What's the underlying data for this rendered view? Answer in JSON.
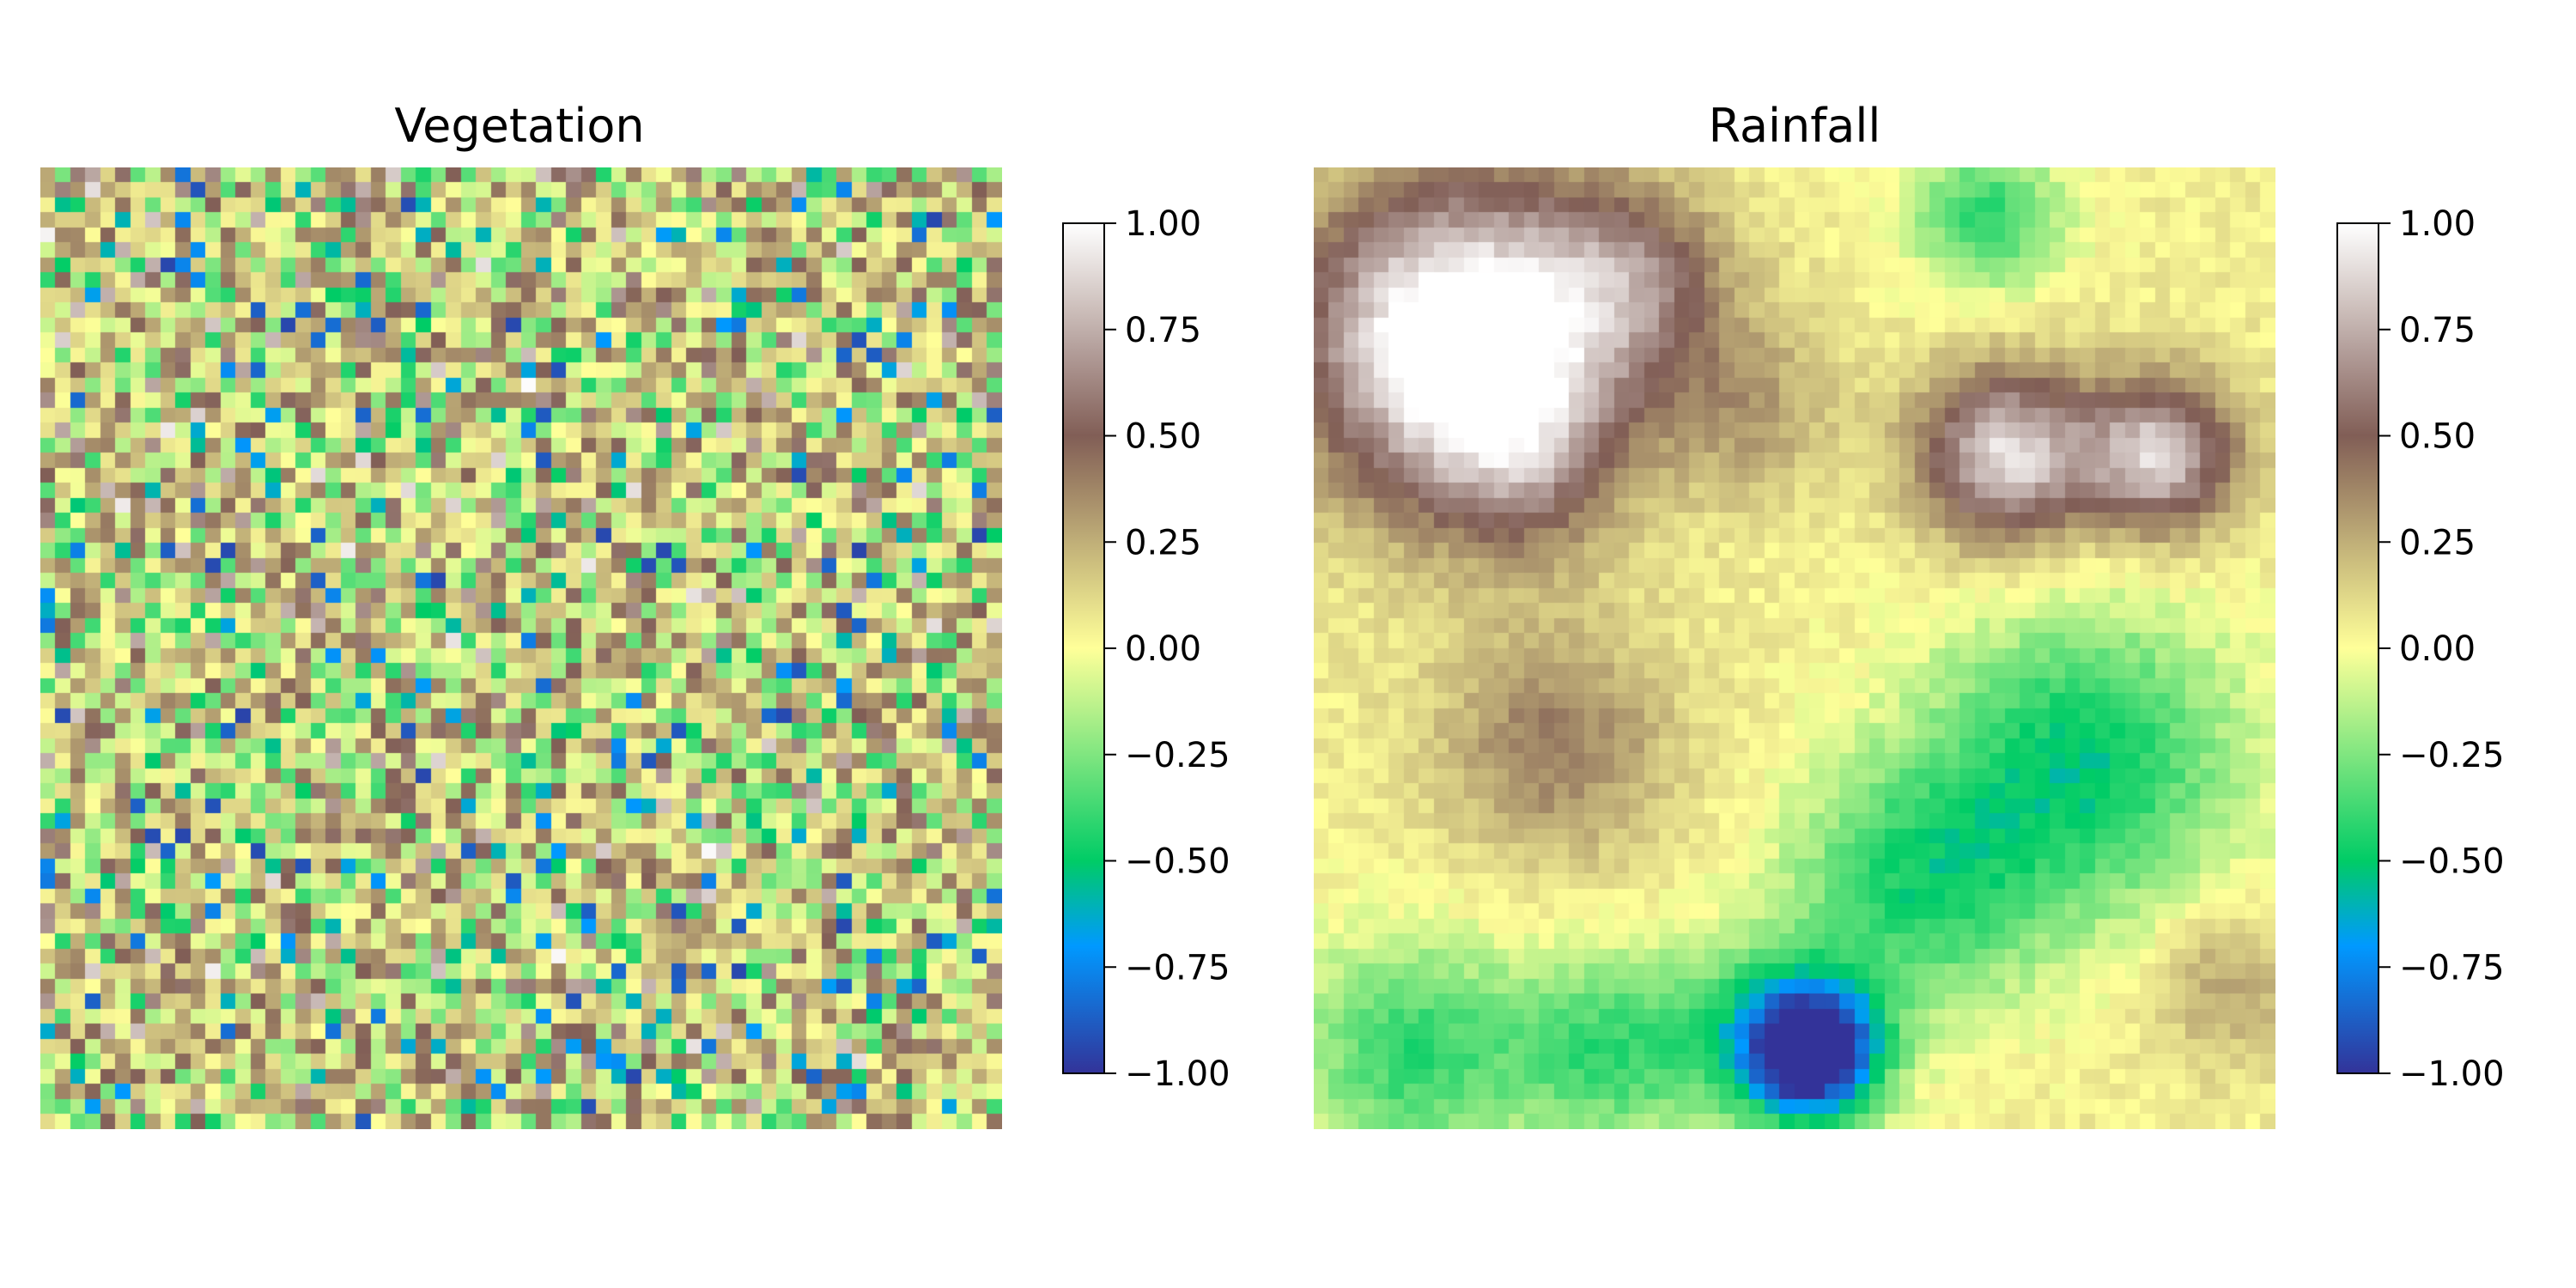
{
  "colormap": {
    "name": "terrain",
    "stops": [
      {
        "value": -1.0,
        "color": "#333399"
      },
      {
        "value": -0.7,
        "color": "#0099ff"
      },
      {
        "value": -0.5,
        "color": "#00cc66"
      },
      {
        "value": 0.0,
        "color": "#ffff99"
      },
      {
        "value": 0.5,
        "color": "#815e56"
      },
      {
        "value": 1.0,
        "color": "#ffffff"
      }
    ]
  },
  "chart_data": [
    {
      "type": "heatmap",
      "title": "Vegetation",
      "grid": {
        "rows": 64,
        "cols": 64
      },
      "vmin": -1.0,
      "vmax": 1.0,
      "field_description": "uncorrelated per-cell noise, values mostly between -0.8 and 0.9",
      "colorbar_ticks": [
        "1.00",
        "0.75",
        "0.50",
        "0.25",
        "0.00",
        "−0.25",
        "−0.50",
        "−0.75",
        "−1.00"
      ]
    },
    {
      "type": "heatmap",
      "title": "Rainfall",
      "grid": {
        "rows": 64,
        "cols": 64
      },
      "vmin": -1.0,
      "vmax": 1.0,
      "field_description": "smooth field: high values (0.6-1.0) upper-left and right-middle, low values (-0.9) bottom-center",
      "colorbar_ticks": [
        "1.00",
        "0.75",
        "0.50",
        "0.25",
        "0.00",
        "−0.25",
        "−0.50",
        "−0.75",
        "−1.00"
      ]
    }
  ]
}
